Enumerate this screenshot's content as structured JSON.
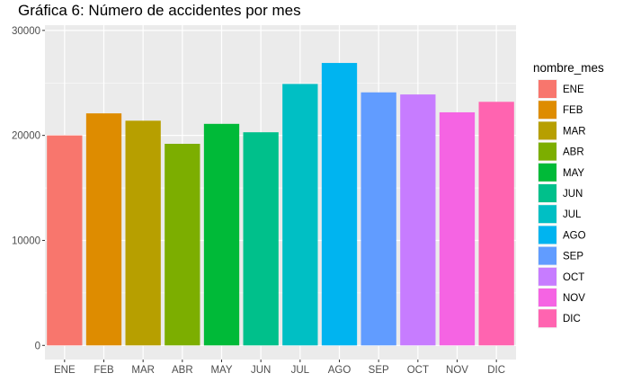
{
  "chart_data": {
    "type": "bar",
    "title": "Gráfica 6: Número de accidentes por mes",
    "xlabel": "",
    "ylabel": "",
    "categories": [
      "ENE",
      "FEB",
      "MAR",
      "ABR",
      "MAY",
      "JUN",
      "JUL",
      "AGO",
      "SEP",
      "OCT",
      "NOV",
      "DIC"
    ],
    "values": [
      20000,
      22100,
      21400,
      19200,
      21100,
      20300,
      24900,
      26900,
      24100,
      23900,
      22200,
      23200
    ],
    "colors": [
      "#F8766D",
      "#DE8C00",
      "#B79F00",
      "#7CAE00",
      "#00BA38",
      "#00C08B",
      "#00BFC4",
      "#00B4F0",
      "#619CFF",
      "#C77CFF",
      "#F564E3",
      "#FF64B0"
    ],
    "ylim": [
      -1345,
      30500
    ],
    "yticks": [
      0,
      10000,
      20000,
      30000
    ],
    "ytick_labels": [
      "0",
      "10000",
      "20000",
      "30000"
    ],
    "grid": true,
    "background": "#EBEBEB",
    "legend": {
      "title": "nombre_mes",
      "position": "right",
      "entries": [
        "ENE",
        "FEB",
        "MAR",
        "ABR",
        "MAY",
        "JUN",
        "JUL",
        "AGO",
        "SEP",
        "OCT",
        "NOV",
        "DIC"
      ]
    }
  }
}
